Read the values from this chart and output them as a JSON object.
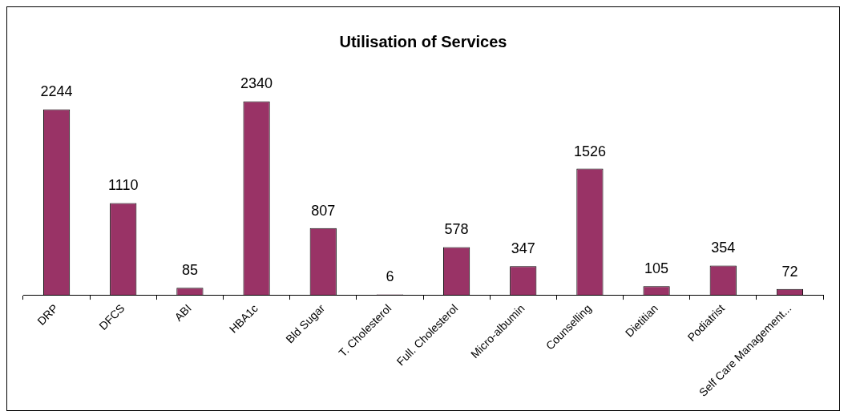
{
  "chart_data": {
    "type": "bar",
    "title": "Utilisation of Services",
    "categories": [
      "DRP",
      "DFCS",
      "ABI",
      "HBA1c",
      "Bld Sugar",
      "T. Cholesterol",
      "Full. Cholesterol",
      "Micro-albumin",
      "Counselling",
      "Dietitian",
      "Podiatrist",
      "Self Care Management..."
    ],
    "values": [
      2244,
      1110,
      85,
      2340,
      807,
      6,
      578,
      347,
      1526,
      105,
      354,
      72
    ],
    "color": "#993366",
    "data_labels": true,
    "grid": false,
    "legend": false
  }
}
